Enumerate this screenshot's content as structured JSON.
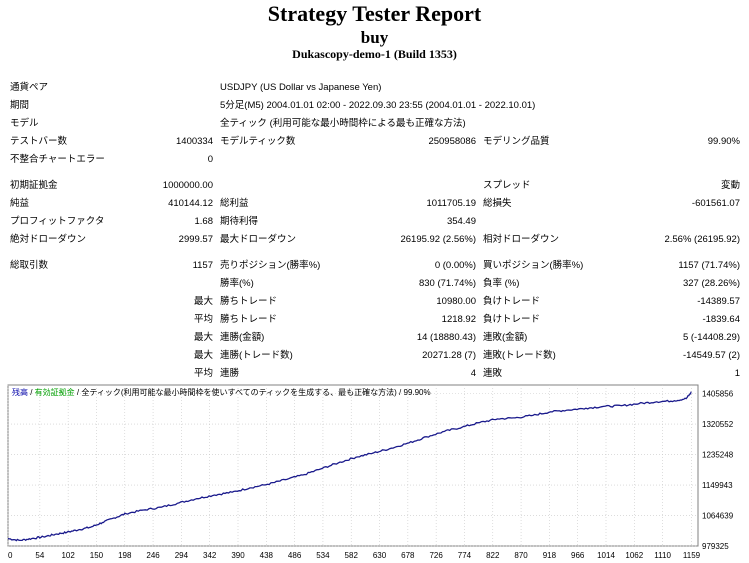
{
  "header": {
    "title": "Strategy Tester Report",
    "subtitle": "buy",
    "server": "Dukascopy-demo-1 (Build 1353)"
  },
  "rows": [
    {
      "top": 82,
      "cells": [
        {
          "x": 10,
          "text": "通貨ペア"
        },
        {
          "x": 220,
          "text": "USDJPY (US Dollar vs Japanese Yen)"
        }
      ]
    },
    {
      "top": 100,
      "cells": [
        {
          "x": 10,
          "text": "期間"
        },
        {
          "x": 220,
          "text": "5分足(M5) 2004.01.01 02:00 - 2022.09.30 23:55 (2004.01.01 - 2022.10.01)"
        }
      ]
    },
    {
      "top": 118,
      "cells": [
        {
          "x": 10,
          "text": "モデル"
        },
        {
          "x": 220,
          "text": "全ティック (利用可能な最小時間枠による最も正確な方法)"
        }
      ]
    },
    {
      "top": 136,
      "cells": [
        {
          "x": 10,
          "text": "テストバー数"
        },
        {
          "rx": 213,
          "text": "1400334"
        },
        {
          "x": 220,
          "text": "モデルティック数"
        },
        {
          "rx": 476,
          "text": "250958086"
        },
        {
          "x": 483,
          "text": "モデリング品質"
        },
        {
          "rx": 740,
          "text": "99.90%"
        }
      ]
    },
    {
      "top": 154,
      "cells": [
        {
          "x": 10,
          "text": "不整合チャートエラー"
        },
        {
          "rx": 213,
          "text": "0"
        }
      ]
    },
    {
      "top": 180,
      "cells": [
        {
          "x": 10,
          "text": "初期証拠金"
        },
        {
          "rx": 213,
          "text": "1000000.00"
        },
        {
          "x": 483,
          "text": "スプレッド"
        },
        {
          "rx": 740,
          "text": "変動"
        }
      ]
    },
    {
      "top": 198,
      "cells": [
        {
          "x": 10,
          "text": "純益"
        },
        {
          "rx": 213,
          "text": "410144.12"
        },
        {
          "x": 220,
          "text": "総利益"
        },
        {
          "rx": 476,
          "text": "1011705.19"
        },
        {
          "x": 483,
          "text": "総損失"
        },
        {
          "rx": 740,
          "text": "-601561.07"
        }
      ]
    },
    {
      "top": 216,
      "cells": [
        {
          "x": 10,
          "text": "プロフィットファクタ"
        },
        {
          "rx": 213,
          "text": "1.68"
        },
        {
          "x": 220,
          "text": "期待利得"
        },
        {
          "rx": 476,
          "text": "354.49"
        }
      ]
    },
    {
      "top": 234,
      "cells": [
        {
          "x": 10,
          "text": "絶対ドローダウン"
        },
        {
          "rx": 213,
          "text": "2999.57"
        },
        {
          "x": 220,
          "text": "最大ドローダウン"
        },
        {
          "rx": 476,
          "text": "26195.92 (2.56%)"
        },
        {
          "x": 483,
          "text": "相対ドローダウン"
        },
        {
          "rx": 740,
          "text": "2.56% (26195.92)"
        }
      ]
    },
    {
      "top": 260,
      "cells": [
        {
          "x": 10,
          "text": "総取引数"
        },
        {
          "rx": 213,
          "text": "1157"
        },
        {
          "x": 220,
          "text": "売りポジション(勝率%)"
        },
        {
          "rx": 476,
          "text": "0 (0.00%)"
        },
        {
          "x": 483,
          "text": "買いポジション(勝率%)"
        },
        {
          "rx": 740,
          "text": "1157 (71.74%)"
        }
      ]
    },
    {
      "top": 278,
      "cells": [
        {
          "x": 220,
          "text": "勝率(%)"
        },
        {
          "rx": 476,
          "text": "830 (71.74%)"
        },
        {
          "x": 483,
          "text": "負率 (%)"
        },
        {
          "rx": 740,
          "text": "327 (28.26%)"
        }
      ]
    },
    {
      "top": 296,
      "cells": [
        {
          "rx": 213,
          "text": "最大"
        },
        {
          "x": 220,
          "text": "勝ちトレード"
        },
        {
          "rx": 476,
          "text": "10980.00"
        },
        {
          "x": 483,
          "text": "負けトレード"
        },
        {
          "rx": 740,
          "text": "-14389.57"
        }
      ]
    },
    {
      "top": 314,
      "cells": [
        {
          "rx": 213,
          "text": "平均"
        },
        {
          "x": 220,
          "text": "勝ちトレード"
        },
        {
          "rx": 476,
          "text": "1218.92"
        },
        {
          "x": 483,
          "text": "負けトレード"
        },
        {
          "rx": 740,
          "text": "-1839.64"
        }
      ]
    },
    {
      "top": 332,
      "cells": [
        {
          "rx": 213,
          "text": "最大"
        },
        {
          "x": 220,
          "text": "連勝(金額)"
        },
        {
          "rx": 476,
          "text": "14 (18880.43)"
        },
        {
          "x": 483,
          "text": "連敗(金額)"
        },
        {
          "rx": 740,
          "text": "5 (-14408.29)"
        }
      ]
    },
    {
      "top": 350,
      "cells": [
        {
          "rx": 213,
          "text": "最大"
        },
        {
          "x": 220,
          "text": "連勝(トレード数)"
        },
        {
          "rx": 476,
          "text": "20271.28 (7)"
        },
        {
          "x": 483,
          "text": "連敗(トレード数)"
        },
        {
          "rx": 740,
          "text": "-14549.57 (2)"
        }
      ]
    },
    {
      "top": 368,
      "cells": [
        {
          "rx": 213,
          "text": "平均"
        },
        {
          "x": 220,
          "text": "連勝"
        },
        {
          "rx": 476,
          "text": "4"
        },
        {
          "x": 483,
          "text": "連敗"
        },
        {
          "rx": 740,
          "text": "1"
        }
      ]
    }
  ],
  "chart_legend": {
    "balance": "残高",
    "sep1": " / ",
    "equity": "有効証拠金",
    "sep2": " / 全ティック(利用可能な最小時間枠を使いすべてのティックを生成する、最も正確な方法) / 99.90%"
  },
  "chart_data": {
    "type": "line",
    "xlabel": "",
    "ylabel": "",
    "x_ticks": [
      0,
      54,
      102,
      150,
      198,
      246,
      294,
      342,
      390,
      438,
      486,
      534,
      582,
      630,
      678,
      726,
      774,
      822,
      870,
      918,
      966,
      1014,
      1062,
      1110,
      1159
    ],
    "y_ticks": [
      979325,
      1064639,
      1149943,
      1235248,
      1320552,
      1405856
    ],
    "xlim": [
      0,
      1170
    ],
    "ylim": [
      979325,
      1430000
    ],
    "colors": {
      "balance": "#1a1a8c",
      "grid": "#c8c8c8",
      "frame": "#808080"
    },
    "series": [
      {
        "points": [
          [
            0,
            1000000
          ],
          [
            20,
            995000
          ],
          [
            40,
            1000000
          ],
          [
            60,
            1005000
          ],
          [
            80,
            1012000
          ],
          [
            100,
            1018000
          ],
          [
            120,
            1025000
          ],
          [
            140,
            1032000
          ],
          [
            160,
            1045000
          ],
          [
            180,
            1058000
          ],
          [
            200,
            1070000
          ],
          [
            230,
            1080000
          ],
          [
            260,
            1088000
          ],
          [
            290,
            1100000
          ],
          [
            320,
            1112000
          ],
          [
            350,
            1122000
          ],
          [
            380,
            1130000
          ],
          [
            410,
            1142000
          ],
          [
            440,
            1152000
          ],
          [
            470,
            1165000
          ],
          [
            500,
            1178000
          ],
          [
            530,
            1195000
          ],
          [
            560,
            1212000
          ],
          [
            590,
            1228000
          ],
          [
            620,
            1240000
          ],
          [
            650,
            1253000
          ],
          [
            680,
            1268000
          ],
          [
            710,
            1285000
          ],
          [
            740,
            1300000
          ],
          [
            770,
            1312000
          ],
          [
            800,
            1325000
          ],
          [
            830,
            1335000
          ],
          [
            860,
            1338000
          ],
          [
            890,
            1345000
          ],
          [
            920,
            1355000
          ],
          [
            950,
            1360000
          ],
          [
            980,
            1365000
          ],
          [
            1010,
            1370000
          ],
          [
            1040,
            1372000
          ],
          [
            1070,
            1378000
          ],
          [
            1100,
            1383000
          ],
          [
            1130,
            1386000
          ],
          [
            1150,
            1392000
          ],
          [
            1159,
            1410144
          ]
        ]
      }
    ]
  }
}
